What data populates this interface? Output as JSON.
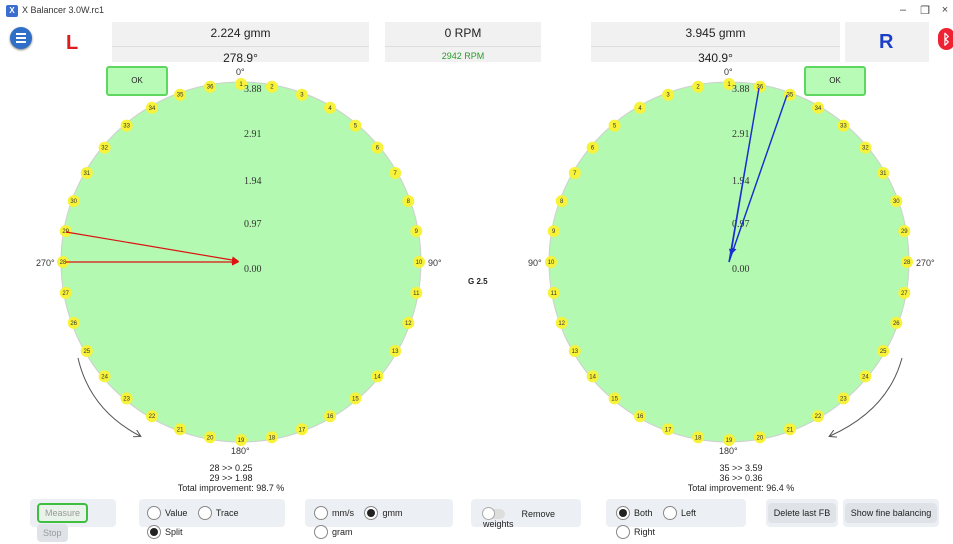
{
  "window": {
    "title": "X Balancer 3.0W.rc1",
    "controls": [
      "–",
      "❐",
      "×"
    ]
  },
  "left": {
    "side_label": "L",
    "weight": "2.224 gmm",
    "angle": "278.9°",
    "ok_label": "OK",
    "results": [
      "28 >> 0.25",
      "29 >> 1.98",
      "Total improvement: 98.7 %"
    ]
  },
  "right": {
    "side_label": "R",
    "weight": "3.945 gmm",
    "angle": "340.9°",
    "ok_label": "OK",
    "results": [
      "35 >> 3.59",
      "36 >> 0.36",
      "Total improvement: 96.4 %"
    ]
  },
  "rpm": {
    "current": "0 RPM",
    "measured": "2942 RPM"
  },
  "grade": "G 2.5",
  "polar": {
    "ring_labels": [
      "3.88",
      "2.91",
      "1.94",
      "0.97",
      "0.00"
    ],
    "top_angle": "0°",
    "bottom_angle": "180°",
    "left_angle_L": "270°",
    "right_angle_L": "90°",
    "left_angle_R": "90°",
    "right_angle_R": "270°",
    "positions": 36
  },
  "colors": {
    "plot_fill": "#b3f9b1",
    "badge": "#f7f23a",
    "left_vector": "#dd1111",
    "right_vector": "#1a2fd0",
    "left_label": "#e01b1b",
    "right_label": "#1c3fc8",
    "rpm_green": "#2a9a2a"
  },
  "controls": {
    "measure": "Measure",
    "stop": "Stop",
    "display_options": [
      "Value",
      "Trace",
      "Split"
    ],
    "display_selected": "Split",
    "unit_options": [
      "mm/s",
      "gmm",
      "gram"
    ],
    "unit_selected": "gmm",
    "remove_weights": "Remove weights",
    "side_options": [
      "Both",
      "Left",
      "Right"
    ],
    "side_selected": "Both",
    "delete_last": "Delete last FB",
    "show_fine": "Show fine balancing"
  }
}
